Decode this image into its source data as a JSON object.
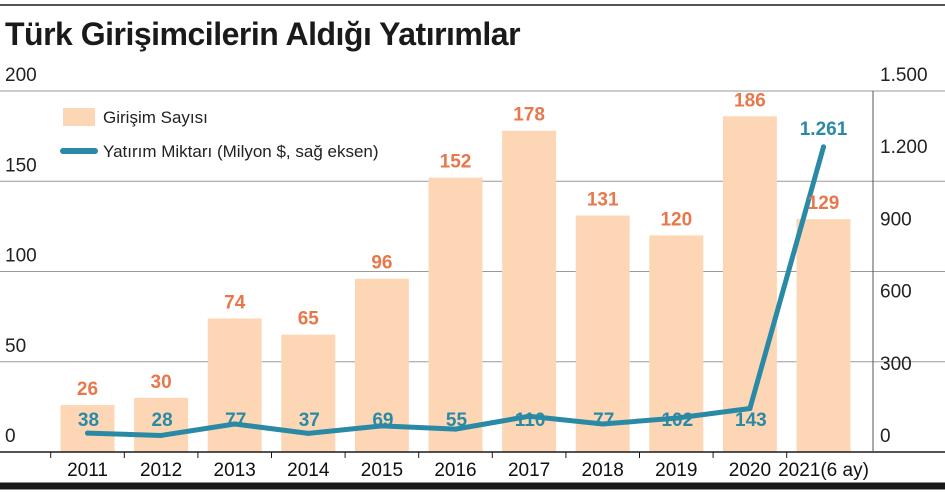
{
  "chart_data": {
    "type": "bar",
    "title": "Türk Girişimcilerin Aldığı Yatırımlar",
    "categories": [
      "2011",
      "2012",
      "2013",
      "2014",
      "2015",
      "2016",
      "2017",
      "2018",
      "2019",
      "2020",
      "2021(6 ay)"
    ],
    "series": [
      {
        "name": "Girişim Sayısı",
        "type": "bar",
        "axis": "left",
        "values": [
          26,
          30,
          74,
          65,
          96,
          152,
          178,
          131,
          120,
          186,
          129
        ],
        "labels": [
          "26",
          "30",
          "74",
          "65",
          "96",
          "152",
          "178",
          "131",
          "120",
          "186",
          "129"
        ]
      },
      {
        "name": "Yatırım Miktarı (Milyon $, sağ eksen)",
        "type": "line",
        "axis": "right",
        "values": [
          38,
          28,
          77,
          37,
          69,
          55,
          110,
          77,
          102,
          143,
          1261
        ],
        "labels": [
          "38",
          "28",
          "77",
          "37",
          "69",
          "55",
          "110",
          "77",
          "102",
          "143",
          "1.261"
        ]
      }
    ],
    "left_axis": {
      "ylim": [
        0,
        200
      ],
      "ticks": [
        0,
        50,
        100,
        150,
        200
      ],
      "tick_labels": [
        "0",
        "50",
        "100",
        "150",
        "200"
      ]
    },
    "right_axis": {
      "ylim": [
        0,
        1500
      ],
      "ticks": [
        0,
        300,
        600,
        900,
        1200,
        1500
      ],
      "tick_labels": [
        "0",
        "300",
        "600",
        "900",
        "1.200",
        "1.500"
      ]
    },
    "grid": true,
    "legend_position": "top-left",
    "colors": {
      "bar": "#FDD7B5",
      "bar_label": "#E8784A",
      "line": "#2A8AA6",
      "line_label": "#2A8AA6",
      "grid": "#9a9a9a",
      "rule": "#1a1a1a"
    }
  }
}
